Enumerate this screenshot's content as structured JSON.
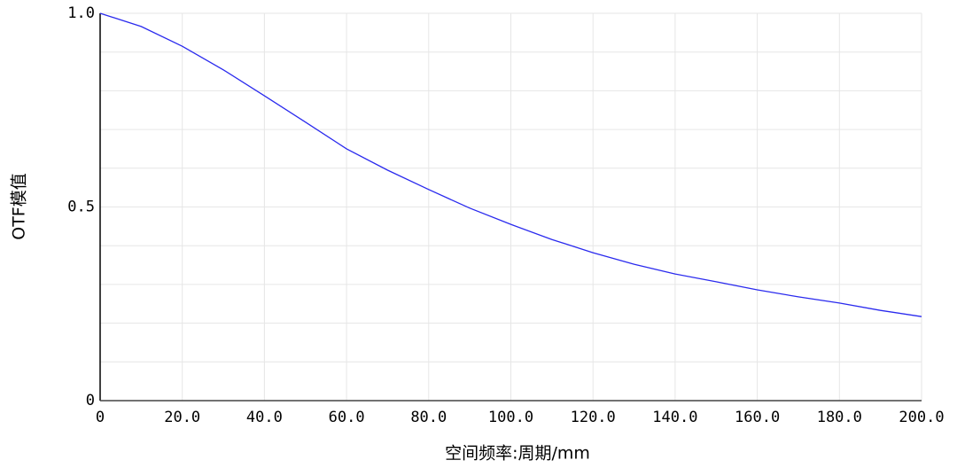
{
  "chart_data": {
    "type": "line",
    "x_label": "空间频率:周期/mm",
    "y_label": "OTF模值",
    "x": [
      0,
      10,
      20,
      30,
      40,
      50,
      60,
      70,
      80,
      90,
      100,
      110,
      120,
      130,
      140,
      150,
      160,
      170,
      180,
      190,
      200
    ],
    "series": [
      {
        "color": "#2a2aee",
        "values": [
          1.0,
          0.966,
          0.915,
          0.854,
          0.787,
          0.719,
          0.65,
          0.595,
          0.545,
          0.497,
          0.455,
          0.416,
          0.382,
          0.352,
          0.327,
          0.307,
          0.286,
          0.268,
          0.252,
          0.233,
          0.217
        ]
      }
    ],
    "xlim": [
      0,
      200
    ],
    "ylim": [
      0,
      1
    ],
    "xticks": [
      0,
      {
        "value": 20,
        "label": "20.0"
      },
      {
        "value": 40,
        "label": "40.0"
      },
      {
        "value": 60,
        "label": "60.0"
      },
      {
        "value": 80,
        "label": "80.0"
      },
      {
        "value": 100,
        "label": "100.0"
      },
      {
        "value": 120,
        "label": "120.0"
      },
      {
        "value": 140,
        "label": "140.0"
      },
      {
        "value": 160,
        "label": "160.0"
      },
      {
        "value": 180,
        "label": "180.0"
      },
      {
        "value": 200,
        "label": "200.0"
      }
    ],
    "yticks": [
      0,
      0.5,
      {
        "value": 1,
        "label": "1.0"
      }
    ],
    "yminorticks": [
      0.1,
      0.2,
      0.3,
      0.4,
      0.6,
      0.7,
      0.8,
      0.9
    ],
    "grid": true
  }
}
